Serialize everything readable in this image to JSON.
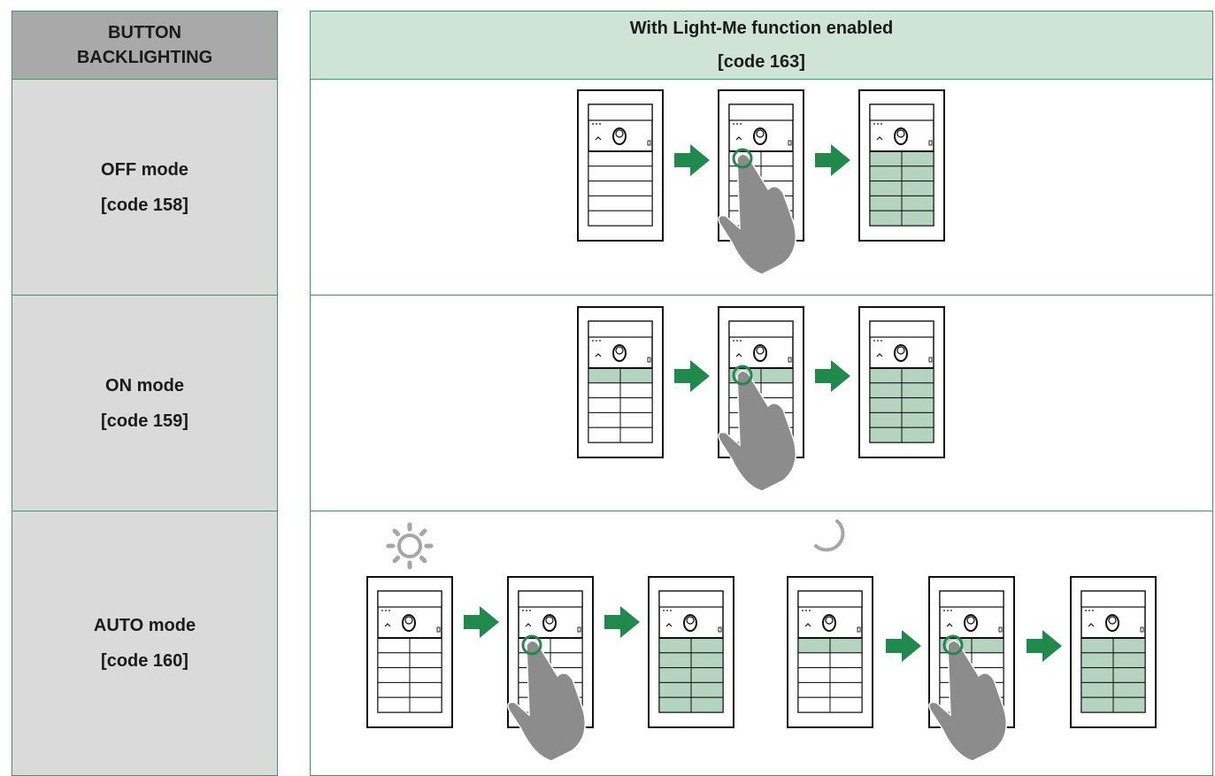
{
  "header": {
    "left": [
      "BUTTON",
      "BACKLIGHTING"
    ],
    "right": [
      "With Light-Me function enabled",
      "[code 163]"
    ]
  },
  "rows": [
    {
      "mode": "OFF mode",
      "code": "[code 158]"
    },
    {
      "mode": "ON mode",
      "code": "[code 159]"
    },
    {
      "mode": "AUTO mode",
      "code": "[code 160]"
    }
  ]
}
